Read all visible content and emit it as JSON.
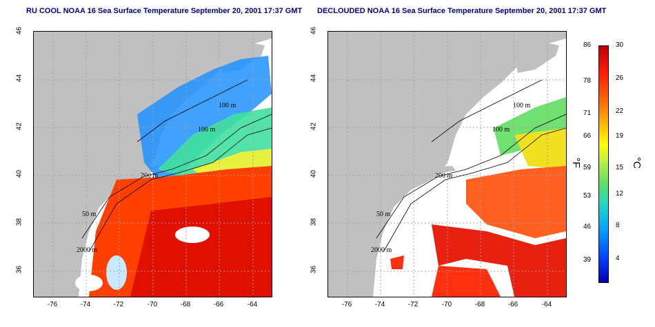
{
  "left_panel": {
    "title": "RU COOL NOAA 16 Sea Surface Temperature September 20, 2001 17:37 GMT"
  },
  "right_panel": {
    "title": "DECLOUDED NOAA 16 Sea Surface Temperature September 20, 2001 17:37 GMT"
  },
  "axes": {
    "y_ticks": [
      "46",
      "44",
      "42",
      "40",
      "38",
      "36"
    ],
    "x_ticks": [
      "-76",
      "-74",
      "-72",
      "-70",
      "-68",
      "-66",
      "-64"
    ]
  },
  "contour_labels": [
    "100 m",
    "100 m",
    "50 m",
    "200 m",
    "50 m",
    "2000 m"
  ],
  "colorbar": {
    "fahrenheit_unit": "°F",
    "celsius_unit": "°C",
    "fahrenheit_ticks": [
      "86",
      "78",
      "71",
      "66",
      "59",
      "53",
      "46",
      "39"
    ],
    "celsius_ticks": [
      "30",
      "26",
      "22",
      "19",
      "15",
      "12",
      "8",
      "4"
    ],
    "colors": [
      "#0000b0",
      "#0040ff",
      "#00a0ff",
      "#20d8c8",
      "#60e060",
      "#c8f040",
      "#ffff00",
      "#ffc000",
      "#ff7000",
      "#ff2000",
      "#c00000"
    ]
  },
  "colors": {
    "land": "#c0c0c0",
    "gridline": "#a0a0a0",
    "title": "#00008b"
  }
}
